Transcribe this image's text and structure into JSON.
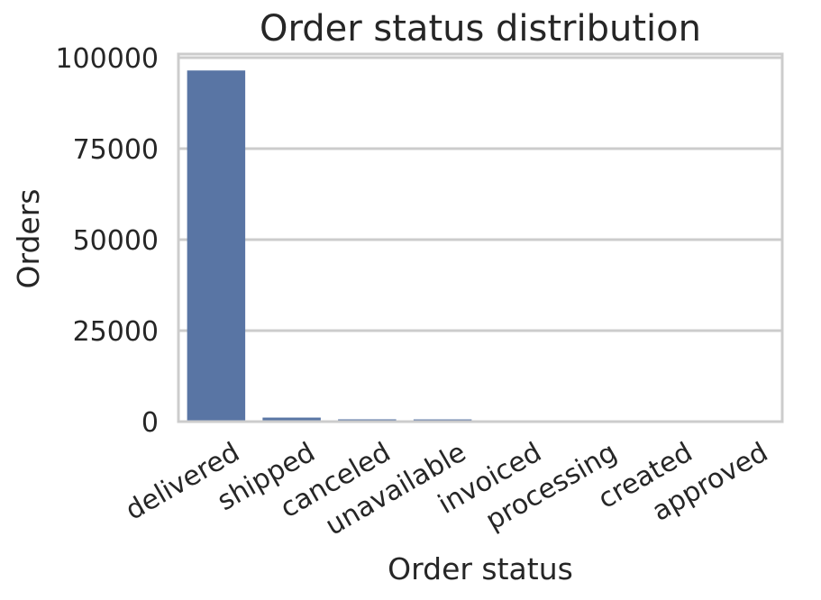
{
  "chart_data": {
    "type": "bar",
    "title": "Order status distribution",
    "xlabel": "Order status",
    "ylabel": "Orders",
    "categories": [
      "delivered",
      "shipped",
      "canceled",
      "unavailable",
      "invoiced",
      "processing",
      "created",
      "approved"
    ],
    "values": [
      96478,
      1107,
      625,
      609,
      314,
      301,
      5,
      2
    ],
    "ylim": [
      0,
      100000
    ],
    "yticks": [
      0,
      25000,
      50000,
      75000,
      100000
    ],
    "bar_color": "#5975a4",
    "grid": true
  }
}
